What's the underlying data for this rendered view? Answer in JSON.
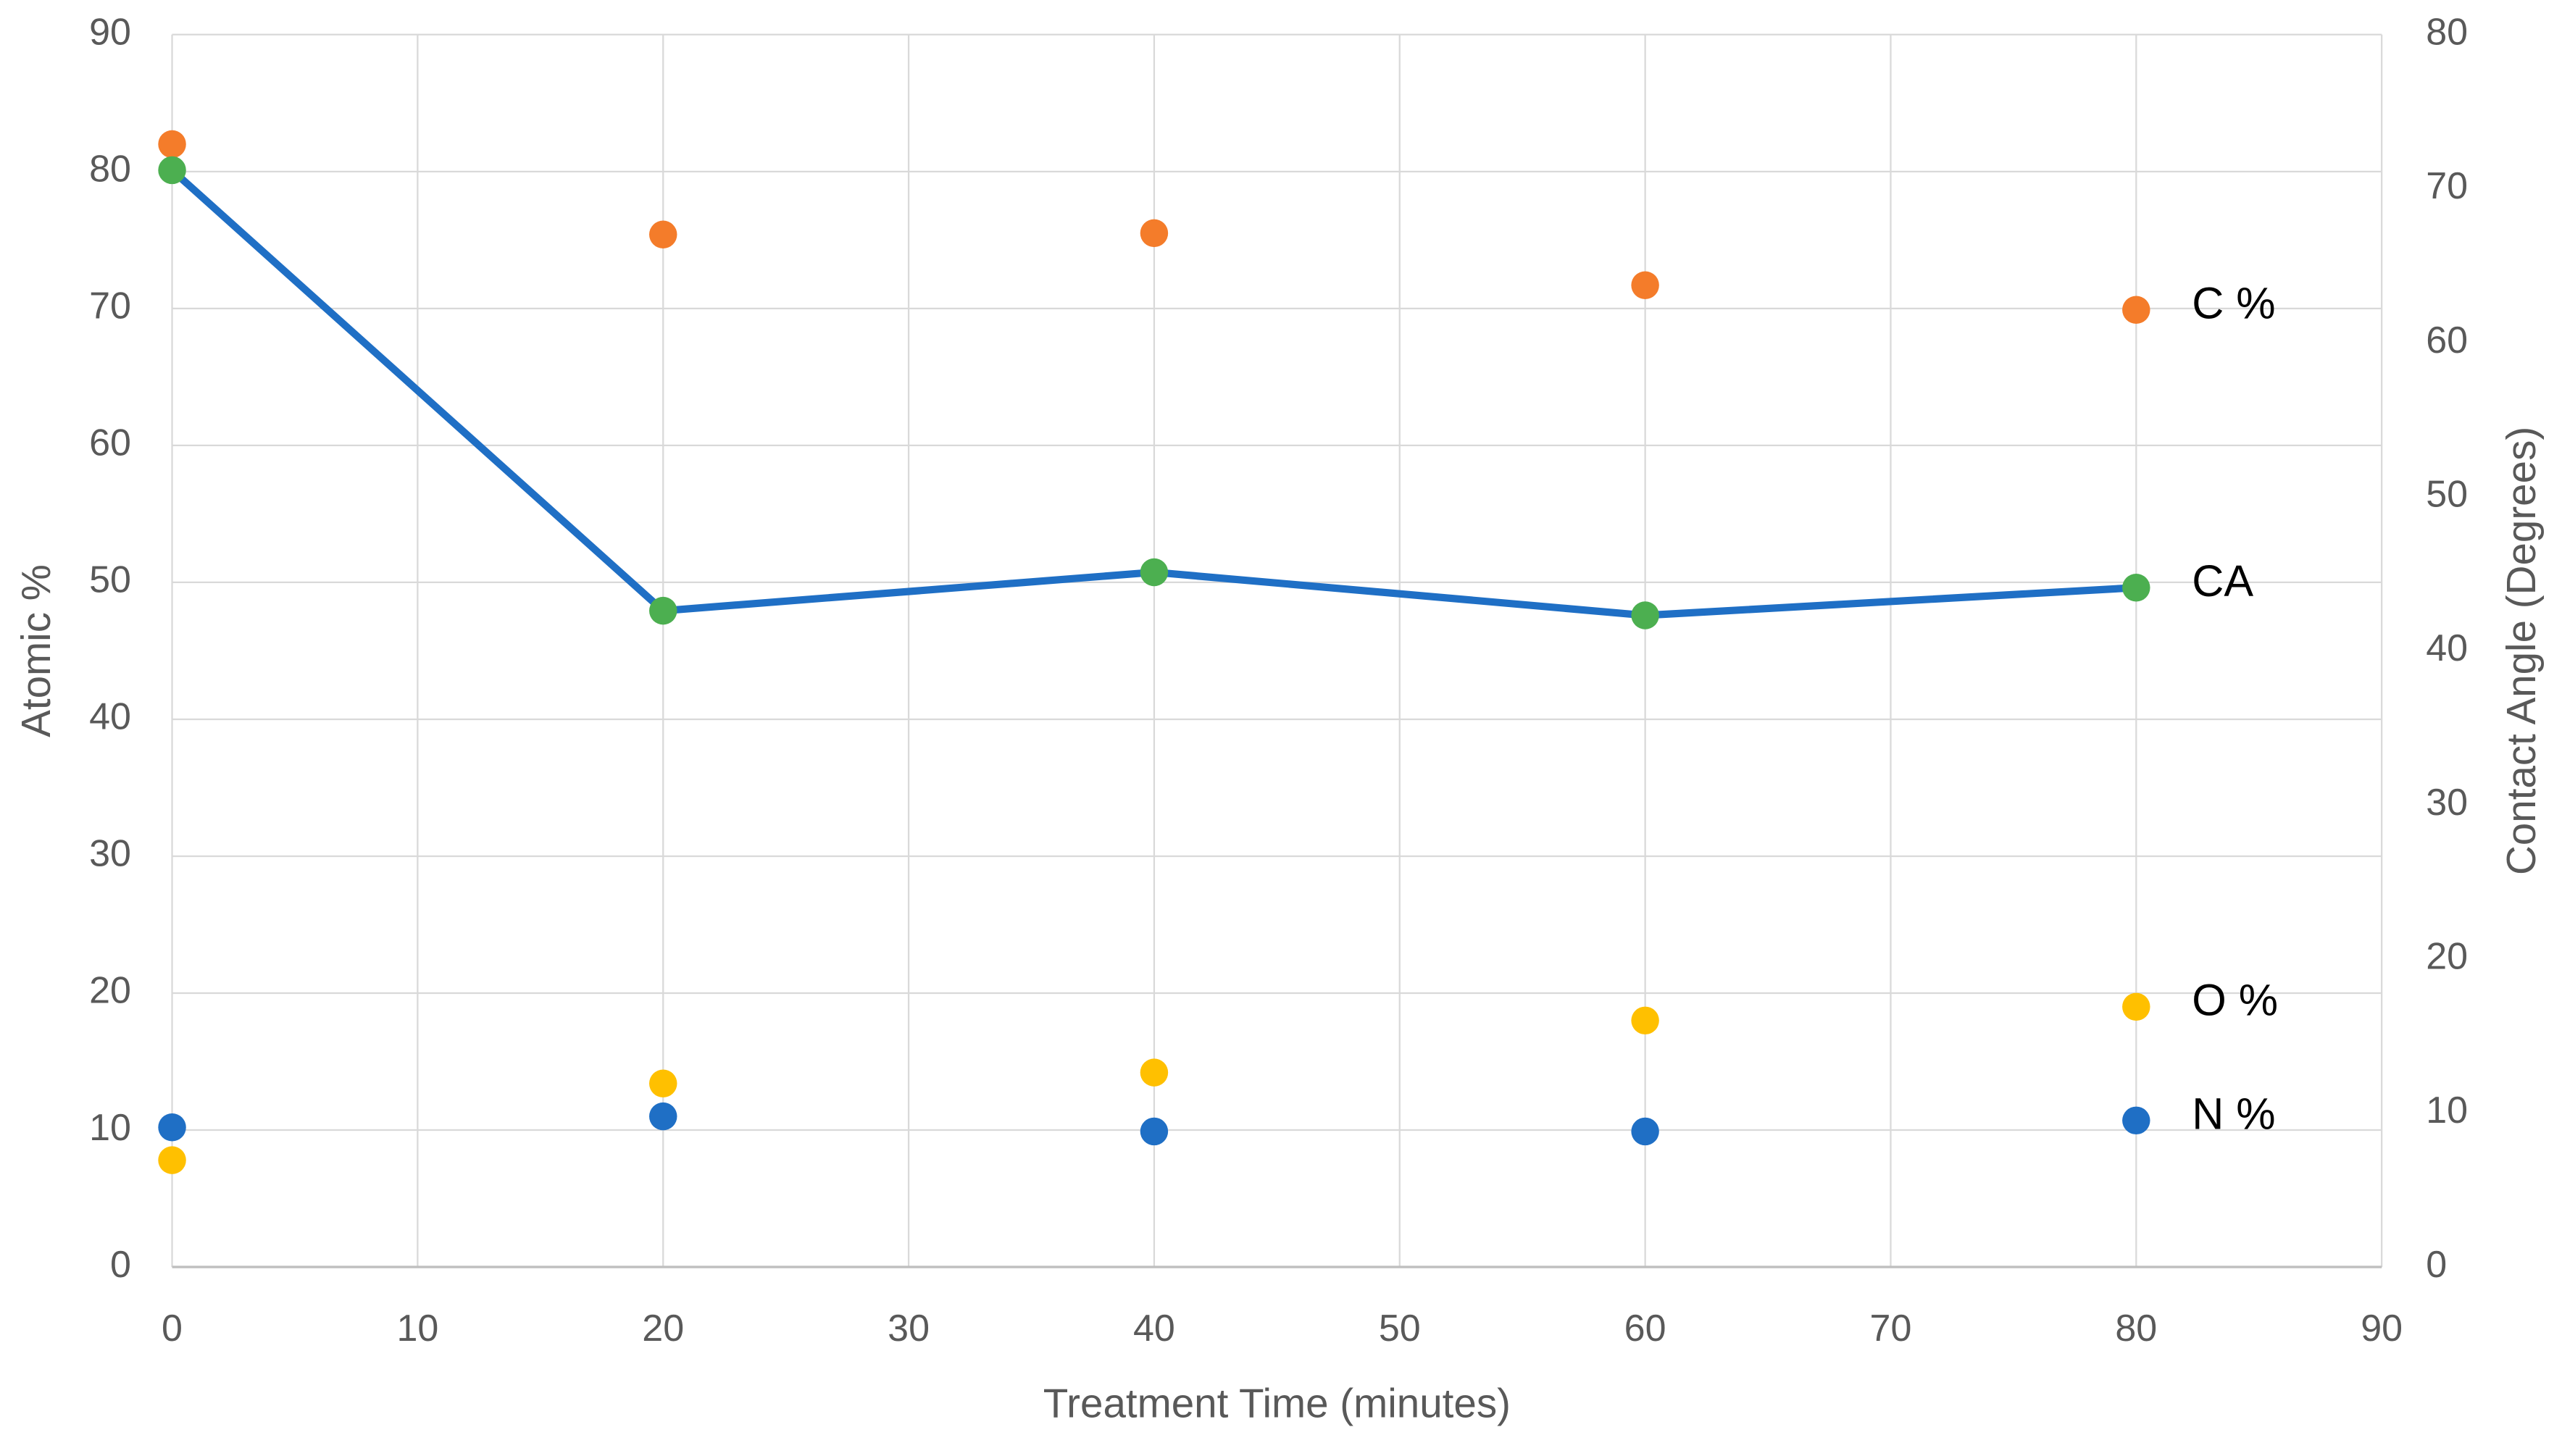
{
  "chart_data": {
    "type": "scatter",
    "x_label": "Treatment Time (minutes)",
    "y_label": "Atomic %",
    "y2_label": "Contact Angle (Degrees)",
    "x": [
      0,
      20,
      40,
      60,
      80
    ],
    "series": [
      {
        "name": "C %",
        "type": "scatter",
        "color": "#f47c2a",
        "values": [
          82,
          75.4,
          75.5,
          71.7,
          69.9
        ]
      },
      {
        "name": "O %",
        "type": "scatter",
        "color": "#ffc000",
        "values": [
          7.8,
          13.4,
          14.2,
          18.0,
          19.0
        ]
      },
      {
        "name": "N %",
        "type": "scatter",
        "color": "#1f6fc5",
        "values": [
          10.2,
          11.0,
          9.9,
          9.9,
          10.7
        ]
      },
      {
        "name": "CA",
        "type": "line",
        "axis": "y2",
        "color": "#1f6fc5",
        "marker_color": "#4caf50",
        "values": [
          71.2,
          42.6,
          45.1,
          42.3,
          44.1
        ]
      }
    ],
    "xlim": [
      0,
      90
    ],
    "xticks": [
      0,
      10,
      20,
      30,
      40,
      50,
      60,
      70,
      80,
      90
    ],
    "ylim": [
      0,
      90
    ],
    "yticks": [
      0,
      10,
      20,
      30,
      40,
      50,
      60,
      70,
      80,
      90
    ],
    "y2lim": [
      0,
      80
    ],
    "y2ticks": [
      0,
      10,
      20,
      30,
      40,
      50,
      60,
      70,
      80
    ],
    "grid": true
  }
}
